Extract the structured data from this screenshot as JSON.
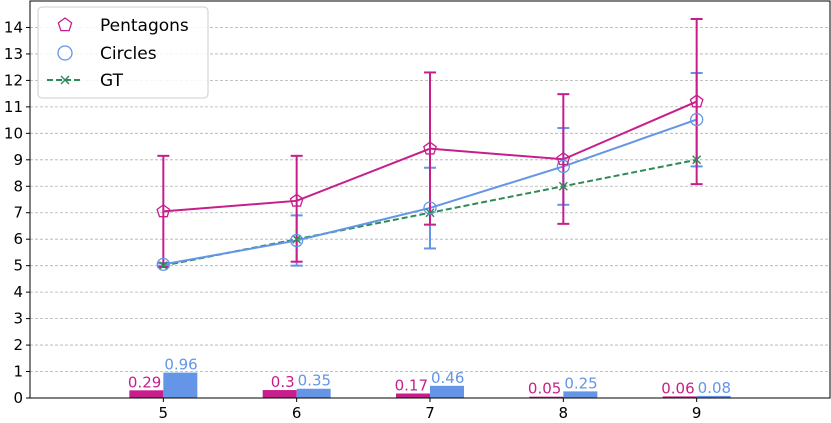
{
  "chart_data": {
    "type": "line",
    "x": [
      5,
      6,
      7,
      8,
      9
    ],
    "xlim": [
      4,
      10
    ],
    "ylim": [
      0,
      15
    ],
    "yticks": [
      0,
      1,
      2,
      3,
      4,
      5,
      6,
      7,
      8,
      9,
      10,
      11,
      12,
      13,
      14
    ],
    "grid": "horizontal dashed",
    "legend_position": "top-left",
    "series": [
      {
        "name": "Pentagons",
        "color": "#c71e8c",
        "marker": "pentagon",
        "linestyle": "solid",
        "values": [
          7.05,
          7.45,
          9.42,
          9.02,
          11.2
        ],
        "err_low": [
          4.95,
          5.15,
          6.55,
          6.58,
          8.08
        ],
        "err_high": [
          9.15,
          9.15,
          12.3,
          11.48,
          14.32
        ],
        "bar_values": [
          0.29,
          0.3,
          0.17,
          0.05,
          0.06
        ],
        "bar_labels": [
          "0.29",
          "0.3",
          "0.17",
          "0.05",
          "0.06"
        ]
      },
      {
        "name": "Circles",
        "color": "#6495e6",
        "marker": "circle",
        "linestyle": "solid",
        "values": [
          5.05,
          5.95,
          7.18,
          8.75,
          10.52
        ],
        "err_low": [
          5.0,
          5.0,
          5.65,
          7.3,
          8.75
        ],
        "err_high": [
          5.1,
          6.9,
          8.7,
          10.2,
          12.28
        ],
        "bar_values": [
          0.96,
          0.35,
          0.46,
          0.25,
          0.08
        ],
        "bar_labels": [
          "0.96",
          "0.35",
          "0.46",
          "0.25",
          "0.08"
        ]
      },
      {
        "name": "GT",
        "color": "#2e8b57",
        "marker": "x",
        "linestyle": "dashed",
        "values": [
          5,
          6,
          7,
          8,
          9
        ]
      }
    ]
  }
}
